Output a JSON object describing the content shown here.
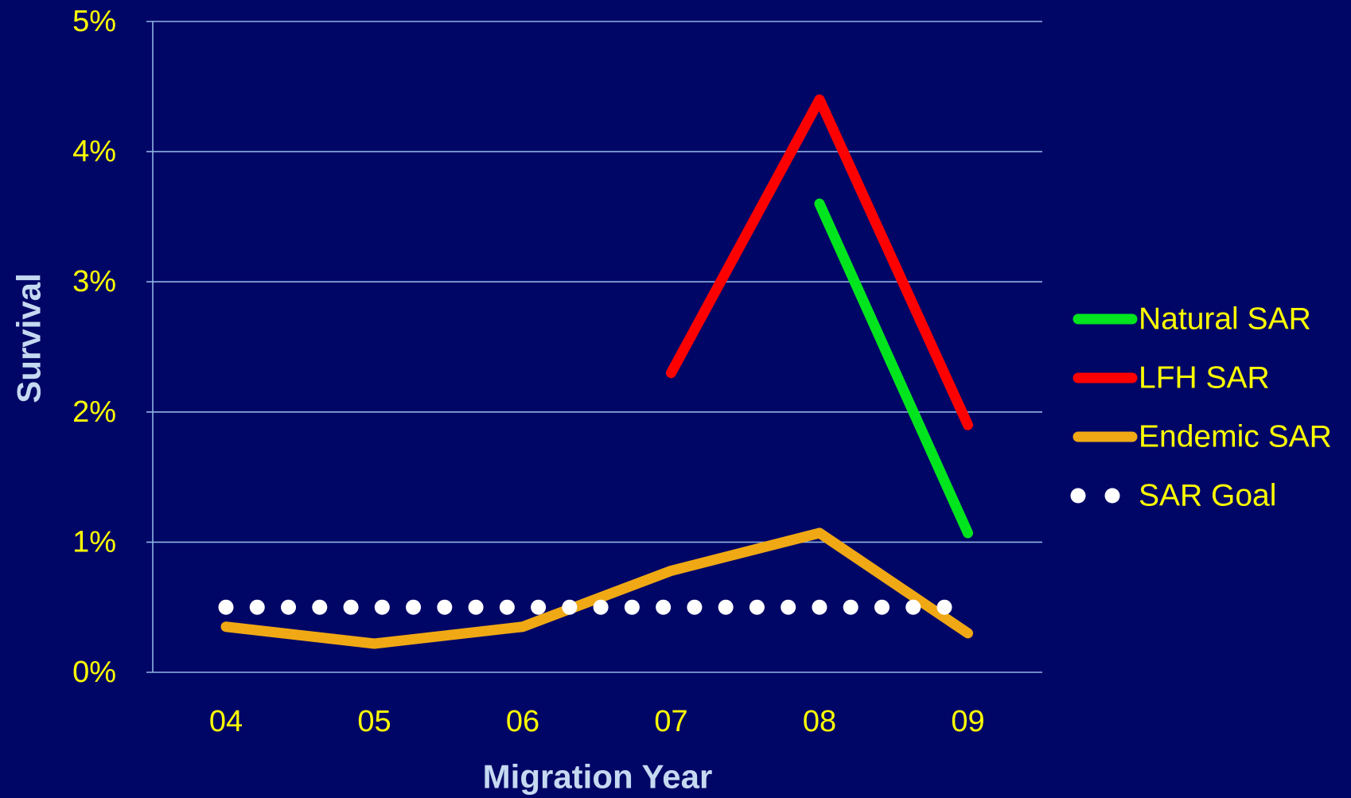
{
  "chart_data": {
    "type": "line",
    "xlabel": "Migration Year",
    "ylabel": "Survival",
    "categories": [
      "04",
      "05",
      "06",
      "07",
      "08",
      "09"
    ],
    "ylim": [
      0,
      0.05
    ],
    "yticks": [
      "0%",
      "1%",
      "2%",
      "3%",
      "4%",
      "5%"
    ],
    "grid": true,
    "legend_position": "right",
    "series": [
      {
        "name": "Natural SAR",
        "color": "#00E51E",
        "style": "solid",
        "values": [
          null,
          null,
          null,
          null,
          0.036,
          0.0107
        ]
      },
      {
        "name": "LFH SAR",
        "color": "#FF0000",
        "style": "solid",
        "values": [
          null,
          null,
          null,
          0.023,
          0.044,
          0.019
        ]
      },
      {
        "name": "Endemic SAR",
        "color": "#F0A914",
        "style": "solid",
        "values": [
          0.0035,
          0.0022,
          0.0035,
          0.0078,
          0.0107,
          0.003
        ]
      },
      {
        "name": "SAR Goal",
        "color": "#FFFFFF",
        "style": "dotted",
        "values": [
          0.005,
          0.005,
          0.005,
          0.005,
          0.005,
          0.005
        ]
      }
    ]
  }
}
